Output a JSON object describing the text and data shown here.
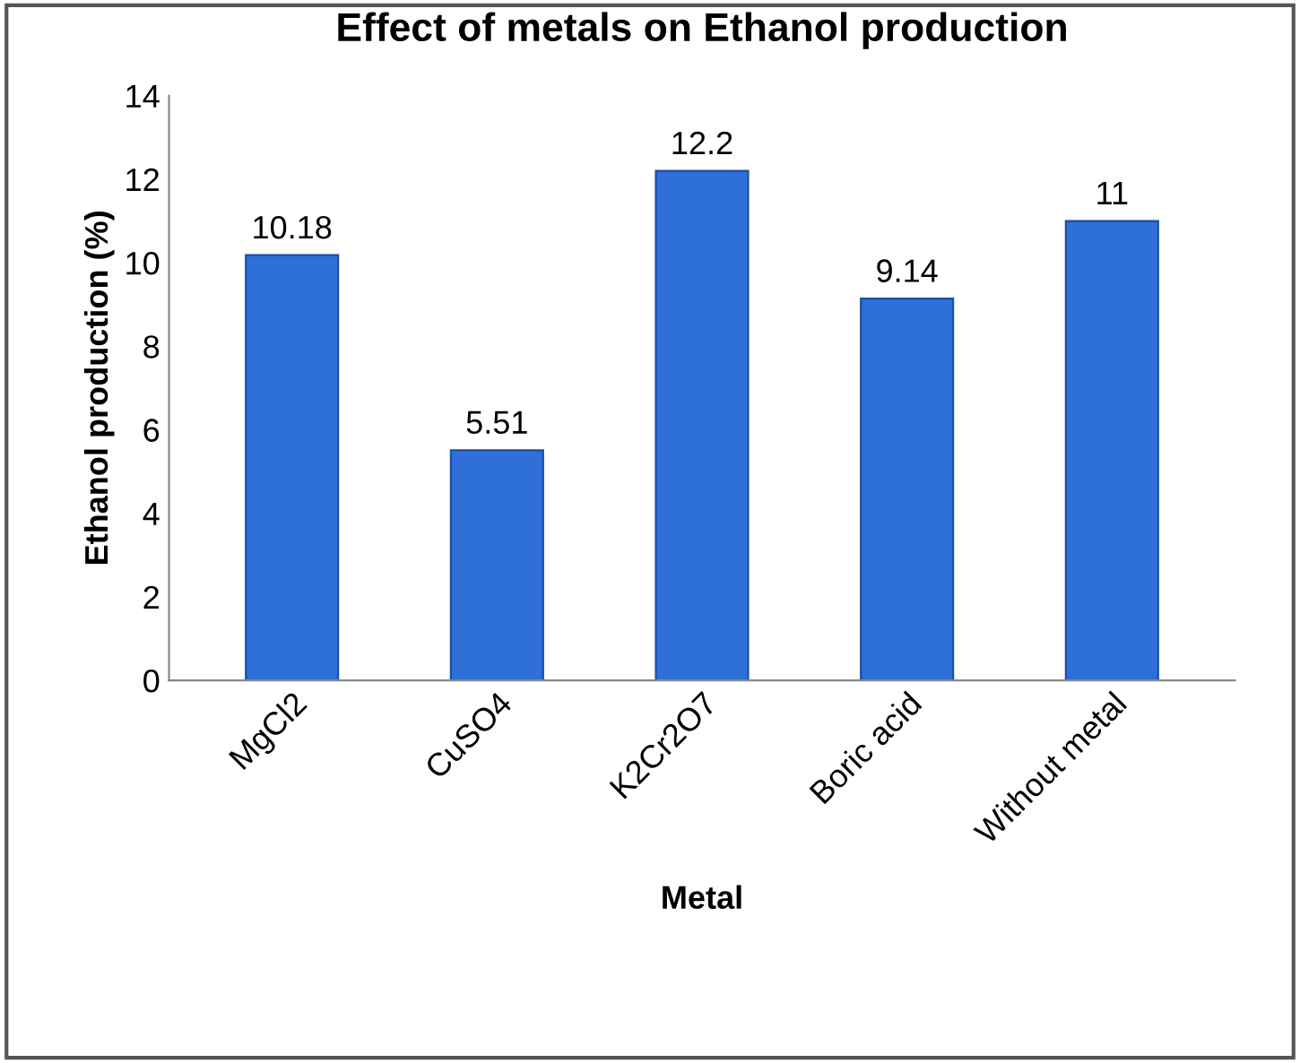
{
  "chart_data": {
    "type": "bar",
    "title": "Effect of metals on Ethanol production",
    "xlabel": "Metal",
    "ylabel": "Ethanol production (%)",
    "categories": [
      "MgCl2",
      "CuSO4",
      "K2Cr2O7",
      "Boric acid",
      "Without metal"
    ],
    "values": [
      10.18,
      5.51,
      12.2,
      9.14,
      11
    ],
    "color": "#2f6fd8",
    "ylim": [
      0,
      14
    ],
    "yticks": [
      0,
      2,
      4,
      6,
      8,
      10,
      12,
      14
    ],
    "grid": false,
    "data_labels": true
  }
}
